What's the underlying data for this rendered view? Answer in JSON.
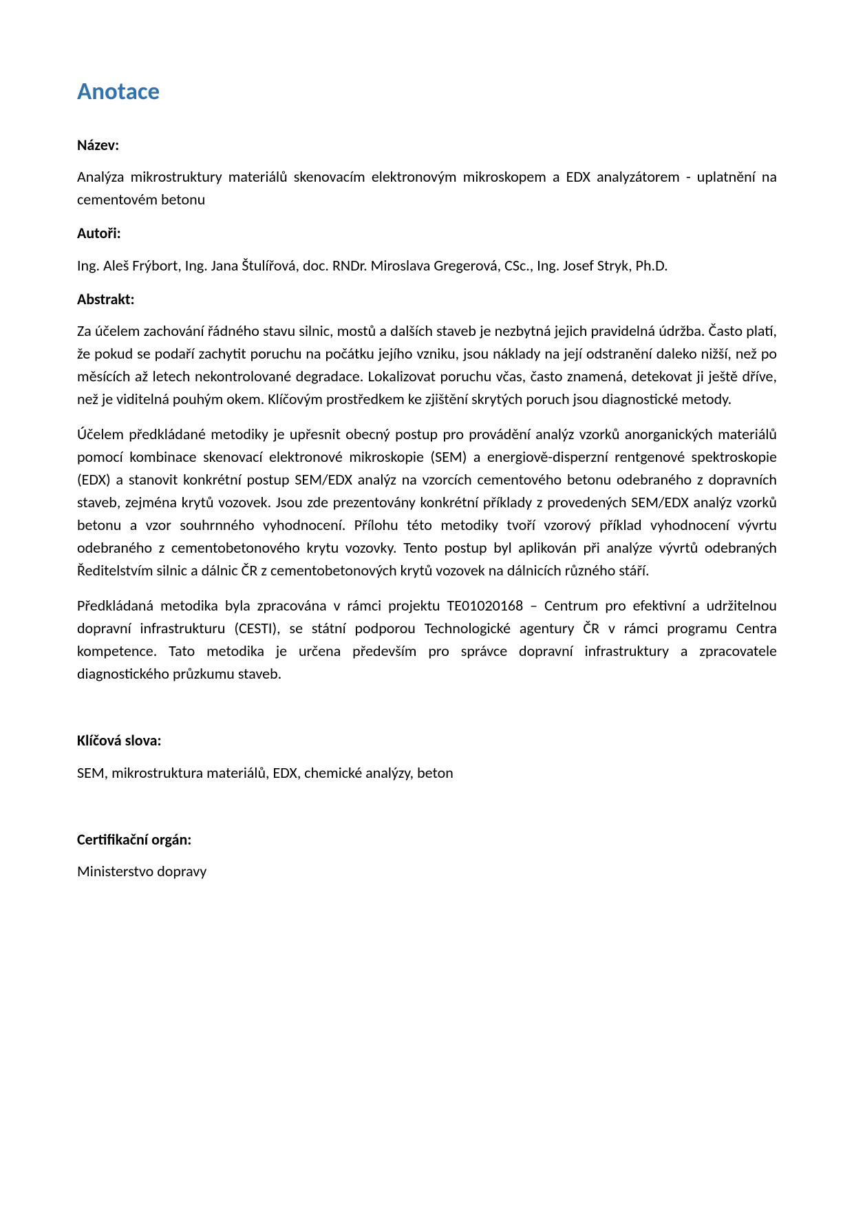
{
  "page": {
    "background_color": "#ffffff",
    "text_color": "#000000",
    "heading_color": "#2e74b5",
    "font_family": "Calibri, 'Segoe UI', Arial, sans-serif",
    "heading_fontsize_pt": 26,
    "label_fontsize_pt": 16,
    "body_fontsize_pt": 16
  },
  "heading": "Anotace",
  "sections": {
    "nazev": {
      "label": "Název:",
      "text": "Analýza mikrostruktury materiálů skenovacím elektronovým mikroskopem a EDX analyzátorem - uplatnění na cementovém betonu"
    },
    "autori": {
      "label": "Autoři:",
      "text": "Ing. Aleš Frýbort, Ing. Jana Štulířová, doc. RNDr. Miroslava Gregerová, CSc., Ing. Josef Stryk, Ph.D."
    },
    "abstrakt": {
      "label": "Abstrakt:",
      "p1": "Za účelem zachování řádného stavu silnic, mostů a dalších staveb je nezbytná jejich pravidelná údržba. Často platí, že pokud se podaří zachytit poruchu na počátku jejího vzniku, jsou náklady na její odstranění daleko nižší, než po měsících až letech nekontrolované degradace. Lokalizovat poruchu včas, často znamená, detekovat ji ještě dříve, než je viditelná pouhým okem. Klíčovým prostředkem ke zjištění skrytých poruch jsou diagnostické metody.",
      "p2": "Účelem předkládané metodiky je upřesnit obecný postup pro provádění analýz vzorků anorganických materiálů pomocí kombinace skenovací elektronové mikroskopie (SEM) a energiově-disperzní rentgenové spektroskopie (EDX) a stanovit konkrétní postup SEM/EDX analýz na vzorcích cementového betonu odebraného z dopravních staveb, zejména krytů vozovek. Jsou zde prezentovány konkrétní příklady z provedených SEM/EDX analýz vzorků betonu a vzor souhrnného vyhodnocení. Přílohu této metodiky tvoří vzorový příklad vyhodnocení vývrtu odebraného z cementobetonového krytu vozovky. Tento postup byl aplikován při analýze vývrtů odebraných Ředitelstvím silnic a dálnic ČR z cementobetonových krytů vozovek na dálnicích různého stáří.",
      "p3": "Předkládaná metodika byla zpracována v rámci projektu TE01020168 – Centrum pro efektivní a udržitelnou dopravní infrastrukturu (CESTI), se státní podporou Technologické agentury ČR v rámci programu Centra kompetence. Tato metodika je určena především pro správce dopravní infrastruktury a zpracovatele diagnostického průzkumu staveb."
    },
    "klicova_slova": {
      "label": "Klíčová slova:",
      "text": "SEM, mikrostruktura materiálů, EDX, chemické analýzy, beton"
    },
    "certifikacni_organ": {
      "label": "Certifikační orgán:",
      "text": "Ministerstvo dopravy"
    }
  }
}
